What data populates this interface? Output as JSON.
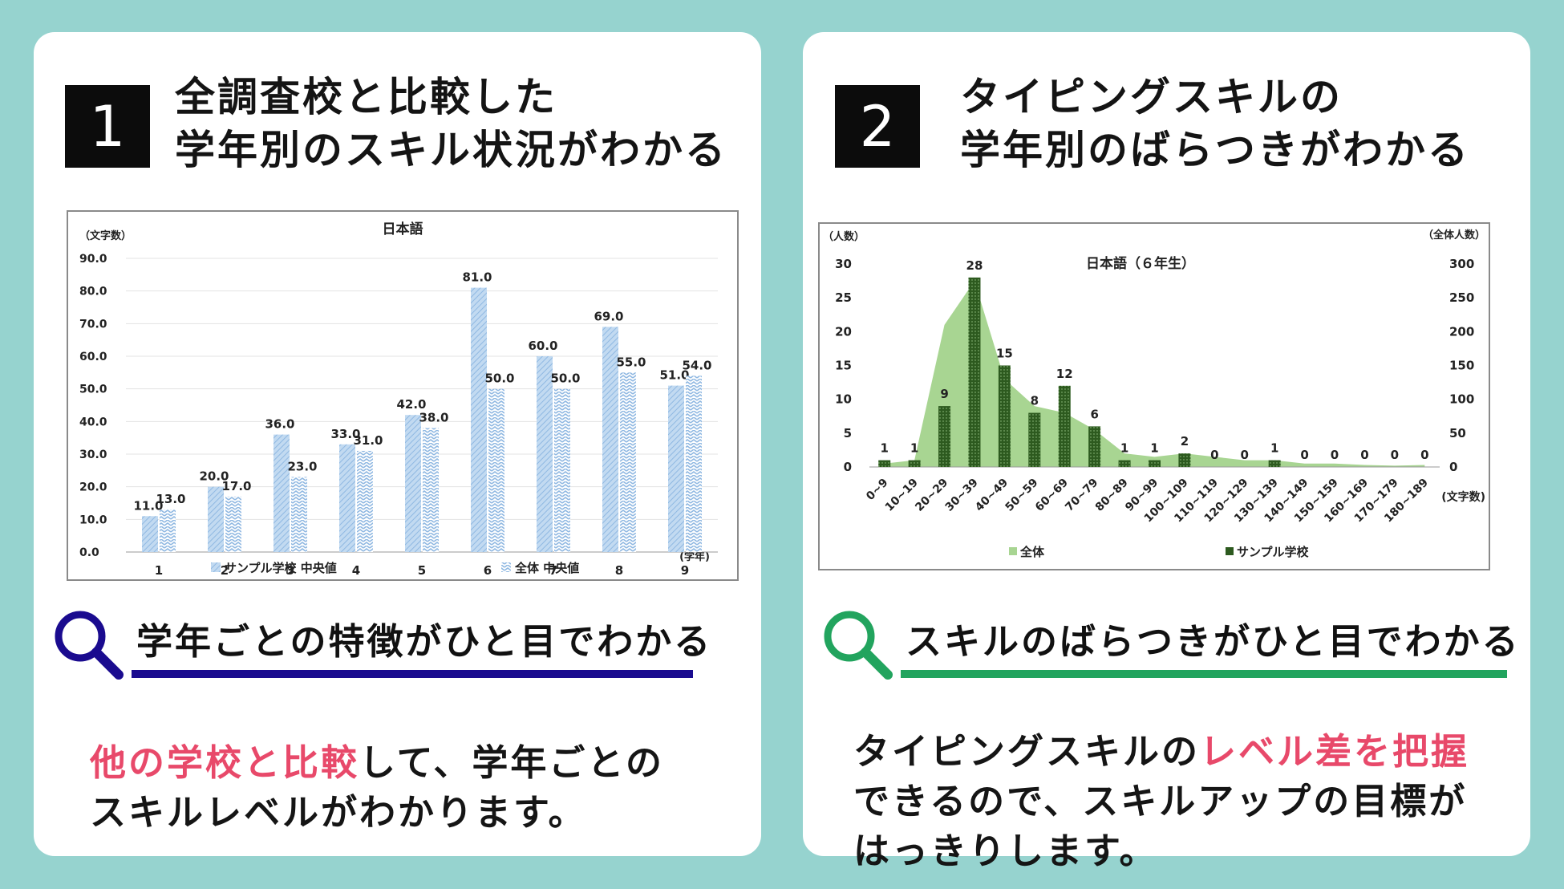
{
  "card1": {
    "number": "1",
    "heading": [
      "全調査校と比較した",
      "学年別のスキル状況がわかる"
    ],
    "subheading": "学年ごとの特徴がひと目でわかる",
    "body_highlight": "他の学校と比較",
    "body_rest_line1": "して、学年ごとの",
    "body_line2": "スキルレベルがわかります。",
    "accent_color": "#1a0b8f"
  },
  "card2": {
    "number": "2",
    "heading": [
      "タイピングスキルの",
      "学年別のばらつきがわかる"
    ],
    "subheading": "スキルのばらつきがひと目でわかる",
    "body_line1_pre": "タイピングスキルの",
    "body_highlight": "レベル差を把握",
    "body_line2": "できるので、スキルアップの目標が",
    "body_line3": "はっきりします。",
    "accent_color": "#22a45e"
  },
  "chart_data": [
    {
      "type": "bar",
      "title": "日本語",
      "ylabel": "（文字数）",
      "xlabel": "(学年)",
      "ylim": [
        0,
        90
      ],
      "yticks": [
        "0.0",
        "10.0",
        "20.0",
        "30.0",
        "40.0",
        "50.0",
        "60.0",
        "70.0",
        "80.0",
        "90.0"
      ],
      "categories": [
        "1",
        "2",
        "3",
        "4",
        "5",
        "6",
        "7",
        "8",
        "9"
      ],
      "series": [
        {
          "name": "サンプル学校 中央値",
          "values": [
            11.0,
            20.0,
            36.0,
            33.0,
            42.0,
            81.0,
            60.0,
            69.0,
            51.0
          ]
        },
        {
          "name": "全体 中央値",
          "values": [
            13.0,
            17.0,
            23.0,
            31.0,
            38.0,
            50.0,
            50.0,
            55.0,
            54.0
          ]
        }
      ],
      "value_labels": [
        [
          "11.0",
          "20.0",
          "36.0",
          "33.0",
          "42.0",
          "81.0",
          "60.0",
          "69.0",
          "51.0"
        ],
        [
          "13.0",
          "17.0",
          "23.0",
          "31.0",
          "38.0",
          "50.0",
          "50.0",
          "55.0",
          "54.0"
        ]
      ],
      "legend": "bottom",
      "grid": true
    },
    {
      "type": "bar",
      "title": "日本語（６年生）",
      "ylabel_left": "（人数）",
      "ylabel_right": "（全体人数）",
      "xlabel": "(文字数)",
      "ylim_left": [
        0,
        30
      ],
      "ylim_right": [
        0,
        300
      ],
      "yticks_left": [
        "0",
        "5",
        "10",
        "15",
        "20",
        "25",
        "30"
      ],
      "yticks_right": [
        "0",
        "50",
        "100",
        "150",
        "200",
        "250",
        "300"
      ],
      "categories": [
        "0~9",
        "10~19",
        "20~29",
        "30~39",
        "40~49",
        "50~59",
        "60~69",
        "70~79",
        "80~89",
        "90~99",
        "100~109",
        "110~119",
        "120~129",
        "130~139",
        "140~149",
        "150~159",
        "160~169",
        "170~179",
        "180~189"
      ],
      "series": [
        {
          "name": "全体",
          "type": "area",
          "axis": "right",
          "values": [
            5,
            10,
            210,
            275,
            130,
            90,
            80,
            55,
            20,
            15,
            20,
            15,
            10,
            10,
            5,
            5,
            3,
            2,
            3
          ]
        },
        {
          "name": "サンプル学校",
          "type": "bar",
          "axis": "left",
          "values": [
            1,
            1,
            9,
            28,
            15,
            8,
            12,
            6,
            1,
            1,
            2,
            0,
            0,
            1,
            0,
            0,
            0,
            0,
            0
          ]
        }
      ],
      "legend": "bottom",
      "grid": false
    }
  ]
}
